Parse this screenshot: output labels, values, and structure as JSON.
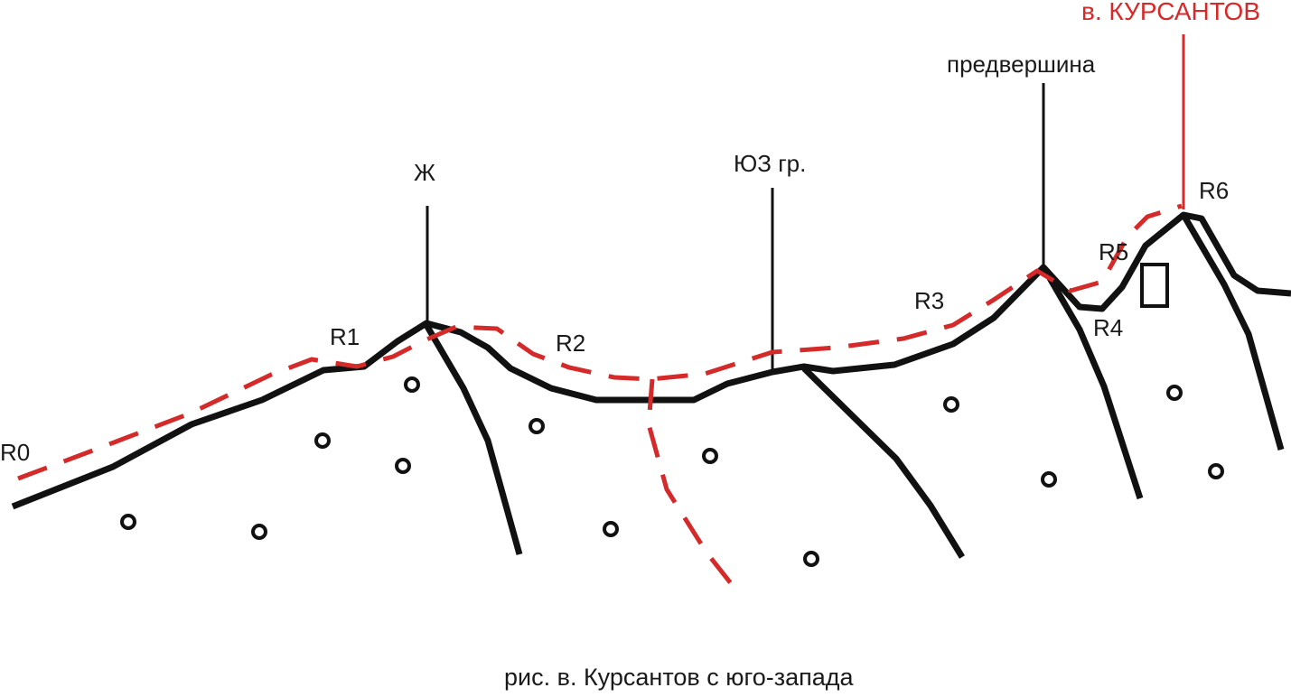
{
  "colors": {
    "ridge": "#111111",
    "route": "#d42a2a",
    "summit_label": "#d42a2a"
  },
  "labels": {
    "summit": "в. КУРСАНТОВ",
    "pre_summit": "предвершина",
    "sw_ridge": "ЮЗ гр.",
    "gendarme": "Ж",
    "r0": "R0",
    "r1": "R1",
    "r2": "R2",
    "r3": "R3",
    "r4": "R4",
    "r5": "R5",
    "r6": "R6"
  },
  "caption": "рис. в. Курсантов с юго-запада"
}
